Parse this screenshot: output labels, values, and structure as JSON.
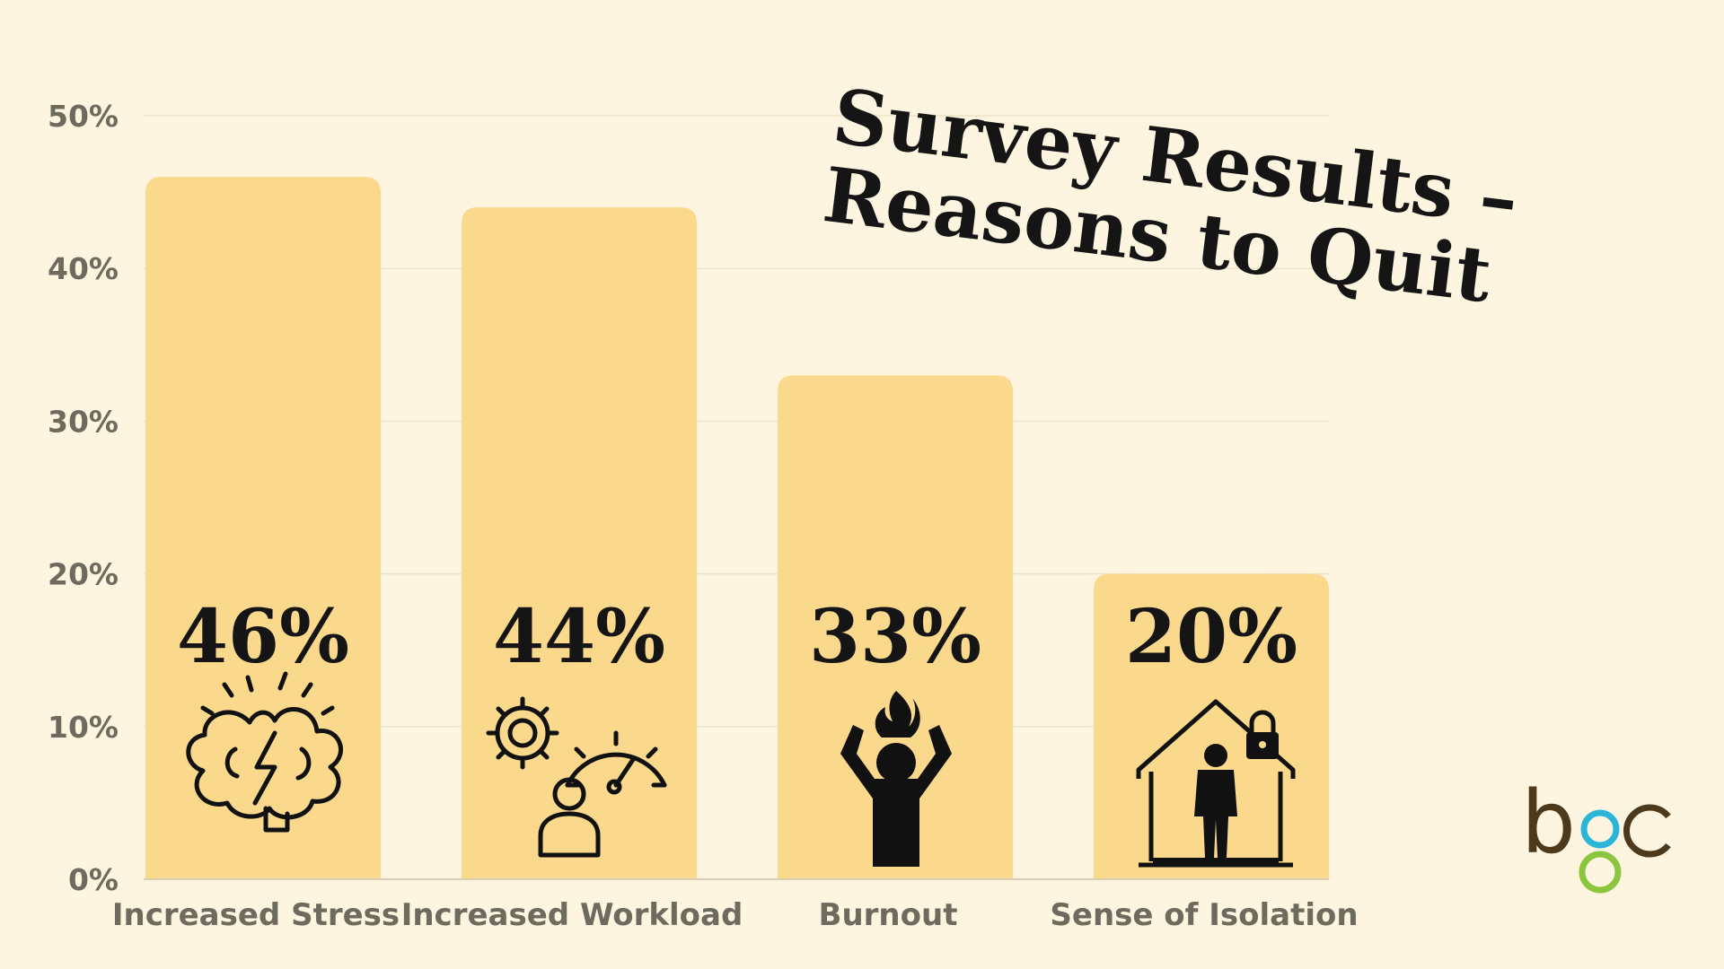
{
  "chart_data": {
    "type": "bar",
    "title": "Survey Results – Reasons to Quit",
    "title_lines": [
      "Survey Results –",
      "Reasons to Quit"
    ],
    "categories": [
      "Increased Stress",
      "Increased Workload",
      "Burnout",
      "Sense of Isolation"
    ],
    "values": [
      46,
      44,
      33,
      20
    ],
    "value_labels": [
      "46%",
      "44%",
      "33%",
      "20%"
    ],
    "icons": [
      "brain-stress-icon",
      "workload-gauge-icon",
      "burnout-person-icon",
      "isolation-house-icon"
    ],
    "y_ticks": [
      "0%",
      "10%",
      "20%",
      "30%",
      "40%",
      "50%"
    ],
    "ylim": [
      0,
      50
    ],
    "grid": true,
    "bar_color": "#FAD88C",
    "background_color": "#FDF5E0"
  },
  "logo": {
    "text": "bgc",
    "colors": [
      "#4d3a1c",
      "#2bb5d8",
      "#8cc63f"
    ]
  }
}
